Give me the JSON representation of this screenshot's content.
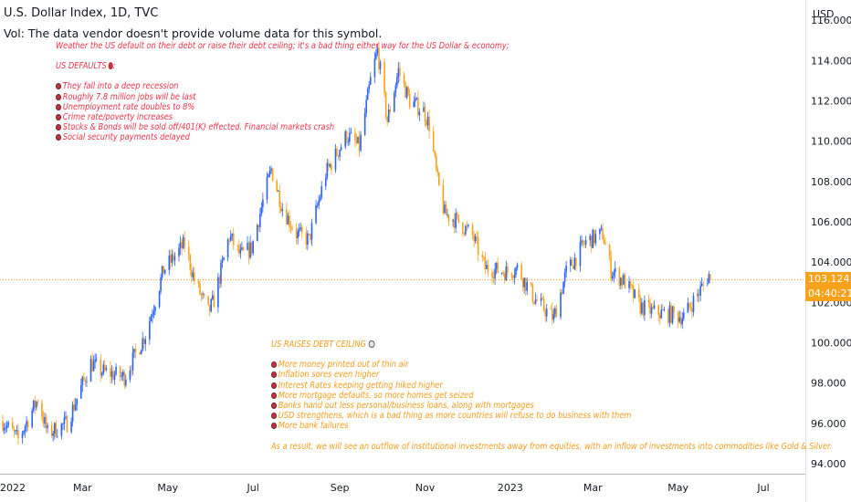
{
  "header": {
    "symbol_title": "U.S. Dollar Index, 1D, TVC",
    "vol_note": "Vol: The data vendor doesn't provide volume data for this symbol."
  },
  "price_tag": {
    "price": "103.124",
    "countdown": "04:40:21",
    "color": "#f7a21b"
  },
  "colors": {
    "up_candle": "#2962ff",
    "down_candle": "#f7a21b",
    "annotation_red": "#f0344a",
    "annotation_orange": "#f59d1b",
    "axis_text": "#131722"
  },
  "annotations": {
    "top_note": {
      "headline": "Weather the US default on their debt or raise their debt ceiling; it's a bad thing either way for the US Dollar & economy;",
      "section_title": "US DEFAULTS",
      "section_icon": "blood-drop-icon",
      "items": [
        "They fall into a deep recession",
        "Roughly 7.8 million jobs will be last",
        "Unemployment rate doubles to 8%",
        "Crime rate/poverty increases",
        "Stocks & Bonds will be sold off/401(K) effected. Financial markets crash",
        "Social security payments delayed"
      ]
    },
    "bottom_note": {
      "section_title": "US RAISES DEBT CEILING",
      "section_icon": "globe-icon",
      "items": [
        "More money printed out of thin air",
        "Inflation sores even higher",
        "Interest Rates keeping getting hiked higher",
        "More mortgage defaults, so more homes get seized",
        "Banks hand out less personal/business loans, along with mortgages",
        "USD strengthens, which is a bad thing as more countries will refuse to do business with them",
        "More bank failures"
      ],
      "conclusion": "As a result, we will see an outflow of institutional investments away from equities, with an inflow of investments into commodities like Gold & Silver."
    }
  },
  "chart_data": {
    "type": "candlestick",
    "title": "U.S. Dollar Index, 1D, TVC",
    "y_unit": "USD",
    "ylim": [
      93.5,
      117
    ],
    "xlim": [
      "2022-01-01",
      "2023-07-31"
    ],
    "y_ticks": [
      "94.000",
      "96.000",
      "98.000",
      "100.000",
      "102.000",
      "104.000",
      "106.000",
      "108.000",
      "110.000",
      "112.000",
      "114.000",
      "116.000"
    ],
    "x_ticks": [
      {
        "label": "2022",
        "date": "2022-01-01"
      },
      {
        "label": "Mar",
        "date": "2022-03-01"
      },
      {
        "label": "May",
        "date": "2022-05-01"
      },
      {
        "label": "Jul",
        "date": "2022-07-01"
      },
      {
        "label": "Sep",
        "date": "2022-09-01"
      },
      {
        "label": "Nov",
        "date": "2022-11-01"
      },
      {
        "label": "2023",
        "date": "2023-01-01"
      },
      {
        "label": "Mar",
        "date": "2023-03-01"
      },
      {
        "label": "May",
        "date": "2023-05-01"
      },
      {
        "label": "Jul",
        "date": "2023-07-01"
      }
    ],
    "last_price": 103.124,
    "price_path": [
      [
        "2022-01-03",
        96.1
      ],
      [
        "2022-01-14",
        95.2
      ],
      [
        "2022-01-28",
        97.2
      ],
      [
        "2022-02-04",
        95.5
      ],
      [
        "2022-02-18",
        96.0
      ],
      [
        "2022-03-07",
        99.0
      ],
      [
        "2022-03-14",
        98.6
      ],
      [
        "2022-03-31",
        98.3
      ],
      [
        "2022-04-15",
        100.4
      ],
      [
        "2022-04-28",
        103.6
      ],
      [
        "2022-05-13",
        104.9
      ],
      [
        "2022-05-20",
        103.1
      ],
      [
        "2022-05-30",
        101.5
      ],
      [
        "2022-06-03",
        102.1
      ],
      [
        "2022-06-14",
        105.3
      ],
      [
        "2022-06-22",
        104.3
      ],
      [
        "2022-06-30",
        104.7
      ],
      [
        "2022-07-08",
        107.0
      ],
      [
        "2022-07-14",
        108.6
      ],
      [
        "2022-07-22",
        106.7
      ],
      [
        "2022-08-01",
        105.4
      ],
      [
        "2022-08-10",
        105.1
      ],
      [
        "2022-08-22",
        108.4
      ],
      [
        "2022-09-06",
        110.3
      ],
      [
        "2022-09-15",
        109.7
      ],
      [
        "2022-09-23",
        113.0
      ],
      [
        "2022-09-28",
        114.5
      ],
      [
        "2022-10-05",
        111.0
      ],
      [
        "2022-10-13",
        113.5
      ],
      [
        "2022-10-21",
        112.0
      ],
      [
        "2022-10-31",
        111.5
      ],
      [
        "2022-11-04",
        110.8
      ],
      [
        "2022-11-10",
        108.0
      ],
      [
        "2022-11-15",
        106.4
      ],
      [
        "2022-11-25",
        106.0
      ],
      [
        "2022-12-05",
        105.3
      ],
      [
        "2022-12-14",
        103.7
      ],
      [
        "2022-12-30",
        103.5
      ],
      [
        "2023-01-06",
        103.7
      ],
      [
        "2023-01-18",
        102.2
      ],
      [
        "2023-02-01",
        101.2
      ],
      [
        "2023-02-10",
        103.5
      ],
      [
        "2023-02-24",
        105.0
      ],
      [
        "2023-03-08",
        105.4
      ],
      [
        "2023-03-14",
        103.6
      ],
      [
        "2023-03-24",
        103.0
      ],
      [
        "2023-04-04",
        101.8
      ],
      [
        "2023-04-14",
        101.5
      ],
      [
        "2023-04-26",
        101.4
      ],
      [
        "2023-05-05",
        101.3
      ],
      [
        "2023-05-16",
        102.5
      ],
      [
        "2023-05-24",
        103.5
      ]
    ]
  }
}
